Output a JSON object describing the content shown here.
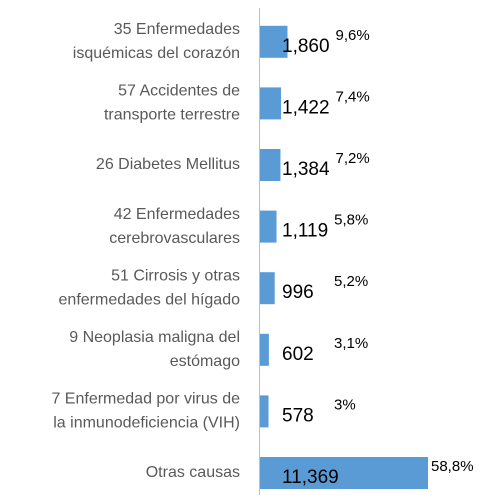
{
  "chart_data": {
    "type": "bar",
    "orientation": "horizontal",
    "color": "#5b9bd5",
    "categories": [
      [
        "35 Enfermedades",
        "isquémicas del corazón"
      ],
      [
        "57 Accidentes de",
        "transporte terrestre"
      ],
      [
        "26 Diabetes Mellitus"
      ],
      [
        "42 Enfermedades",
        "cerebrovasculares"
      ],
      [
        "51 Cirrosis y otras",
        "enfermedades del hígado"
      ],
      [
        "9 Neoplasia maligna del",
        "estómago"
      ],
      [
        "7 Enfermedad por virus de",
        "la inmunodeficiencia (VIH)"
      ],
      [
        "Otras causas"
      ]
    ],
    "values": [
      1860,
      1422,
      1384,
      1119,
      996,
      602,
      578,
      11369
    ],
    "value_labels": [
      "1,860",
      "1,422",
      "1,384",
      "1,119",
      "996",
      "602",
      "578",
      "11,369"
    ],
    "shares": [
      9.6,
      7.4,
      7.2,
      5.8,
      5.2,
      3.1,
      3,
      58.8
    ],
    "share_labels": [
      "9,6%",
      "7,4%",
      "7,2%",
      "5,8%",
      "5,2%",
      "3,1%",
      "3%",
      "58,8%"
    ]
  }
}
